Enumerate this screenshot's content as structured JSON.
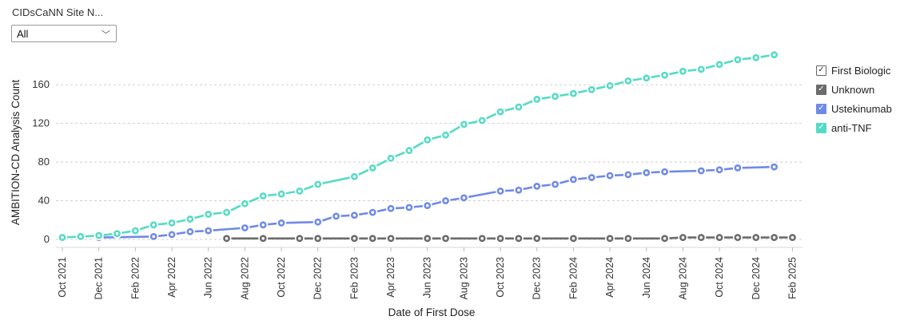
{
  "filter": {
    "label": "CIDsCaNN Site N...",
    "value": "All"
  },
  "legend": {
    "title": "First Biologic",
    "items": [
      {
        "label": "Unknown",
        "color": "#6b6b6b",
        "check": "✓"
      },
      {
        "label": "Ustekinumab",
        "color": "#6f8ae6",
        "check": "✓"
      },
      {
        "label": "anti-TNF",
        "color": "#55dbc5",
        "check": "✓"
      }
    ],
    "title_check": "✓"
  },
  "chart_data": {
    "type": "line",
    "xlabel": "Date of First Dose",
    "ylabel": "AMBITION-CD Analysis Count",
    "ylim": [
      0,
      180
    ],
    "yticks": [
      0,
      40,
      80,
      120,
      160
    ],
    "xlim": [
      "2021-10",
      "2025-02"
    ],
    "xtick_labels": [
      "Oct 2021",
      "Dec 2021",
      "Feb 2022",
      "Apr 2022",
      "Jun 2022",
      "Aug 2022",
      "Oct 2022",
      "Dec 2022",
      "Feb 2023",
      "Apr 2023",
      "Jun 2023",
      "Aug 2023",
      "Oct 2023",
      "Dec 2023",
      "Feb 2024",
      "Apr 2024",
      "Jun 2024",
      "Aug 2024",
      "Oct 2024",
      "Dec 2024",
      "Feb 2025"
    ],
    "grid": true,
    "legend_position": "right",
    "series": [
      {
        "name": "Unknown",
        "color": "#6b6b6b",
        "points": [
          [
            "2022-07-01",
            1
          ],
          [
            "2022-09-01",
            1
          ],
          [
            "2022-11-01",
            1
          ],
          [
            "2022-12-01",
            1
          ],
          [
            "2023-02-01",
            1
          ],
          [
            "2023-03-01",
            1
          ],
          [
            "2023-04-01",
            1
          ],
          [
            "2023-06-01",
            1
          ],
          [
            "2023-07-01",
            1
          ],
          [
            "2023-09-01",
            1
          ],
          [
            "2023-10-01",
            1
          ],
          [
            "2023-11-01",
            1
          ],
          [
            "2023-12-01",
            1
          ],
          [
            "2024-02-01",
            1
          ],
          [
            "2024-04-01",
            1
          ],
          [
            "2024-05-01",
            1
          ],
          [
            "2024-07-01",
            1
          ],
          [
            "2024-08-01",
            2
          ],
          [
            "2024-09-01",
            2
          ],
          [
            "2024-10-01",
            2
          ],
          [
            "2024-11-01",
            2
          ],
          [
            "2024-12-01",
            2
          ],
          [
            "2025-01-01",
            2
          ],
          [
            "2025-02-01",
            2
          ]
        ]
      },
      {
        "name": "Ustekinumab",
        "color": "#6f8ae6",
        "points": [
          [
            "2021-12-01",
            2
          ],
          [
            "2022-03-01",
            3
          ],
          [
            "2022-04-01",
            5
          ],
          [
            "2022-05-01",
            8
          ],
          [
            "2022-06-01",
            9
          ],
          [
            "2022-08-01",
            12
          ],
          [
            "2022-09-01",
            15
          ],
          [
            "2022-10-01",
            17
          ],
          [
            "2022-12-01",
            18
          ],
          [
            "2023-01-01",
            24
          ],
          [
            "2023-02-01",
            25
          ],
          [
            "2023-03-01",
            28
          ],
          [
            "2023-04-01",
            32
          ],
          [
            "2023-05-01",
            33
          ],
          [
            "2023-06-01",
            35
          ],
          [
            "2023-07-01",
            40
          ],
          [
            "2023-08-01",
            43
          ],
          [
            "2023-10-01",
            50
          ],
          [
            "2023-11-01",
            51
          ],
          [
            "2023-12-01",
            55
          ],
          [
            "2024-01-01",
            57
          ],
          [
            "2024-02-01",
            62
          ],
          [
            "2024-03-01",
            64
          ],
          [
            "2024-04-01",
            66
          ],
          [
            "2024-05-01",
            67
          ],
          [
            "2024-06-01",
            69
          ],
          [
            "2024-07-01",
            70
          ],
          [
            "2024-09-01",
            71
          ],
          [
            "2024-10-01",
            72
          ],
          [
            "2024-11-01",
            74
          ],
          [
            "2025-01-01",
            75
          ]
        ]
      },
      {
        "name": "anti-TNF",
        "color": "#55dbc5",
        "points": [
          [
            "2021-10-01",
            2
          ],
          [
            "2021-11-01",
            3
          ],
          [
            "2021-12-01",
            4
          ],
          [
            "2022-01-01",
            6
          ],
          [
            "2022-02-01",
            9
          ],
          [
            "2022-03-01",
            15
          ],
          [
            "2022-04-01",
            17
          ],
          [
            "2022-05-01",
            21
          ],
          [
            "2022-06-01",
            26
          ],
          [
            "2022-07-01",
            28
          ],
          [
            "2022-08-01",
            37
          ],
          [
            "2022-09-01",
            45
          ],
          [
            "2022-10-01",
            47
          ],
          [
            "2022-11-01",
            50
          ],
          [
            "2022-12-01",
            57
          ],
          [
            "2023-02-01",
            65
          ],
          [
            "2023-03-01",
            74
          ],
          [
            "2023-04-01",
            84
          ],
          [
            "2023-05-01",
            92
          ],
          [
            "2023-06-01",
            103
          ],
          [
            "2023-07-01",
            108
          ],
          [
            "2023-08-01",
            119
          ],
          [
            "2023-09-01",
            123
          ],
          [
            "2023-10-01",
            132
          ],
          [
            "2023-11-01",
            137
          ],
          [
            "2023-12-01",
            145
          ],
          [
            "2024-01-01",
            148
          ],
          [
            "2024-02-01",
            151
          ],
          [
            "2024-03-01",
            155
          ],
          [
            "2024-04-01",
            159
          ],
          [
            "2024-05-01",
            164
          ],
          [
            "2024-06-01",
            167
          ],
          [
            "2024-07-01",
            170
          ],
          [
            "2024-08-01",
            174
          ],
          [
            "2024-09-01",
            176
          ],
          [
            "2024-10-01",
            181
          ],
          [
            "2024-11-01",
            186
          ],
          [
            "2024-12-01",
            188
          ],
          [
            "2025-01-01",
            191
          ]
        ]
      }
    ]
  }
}
